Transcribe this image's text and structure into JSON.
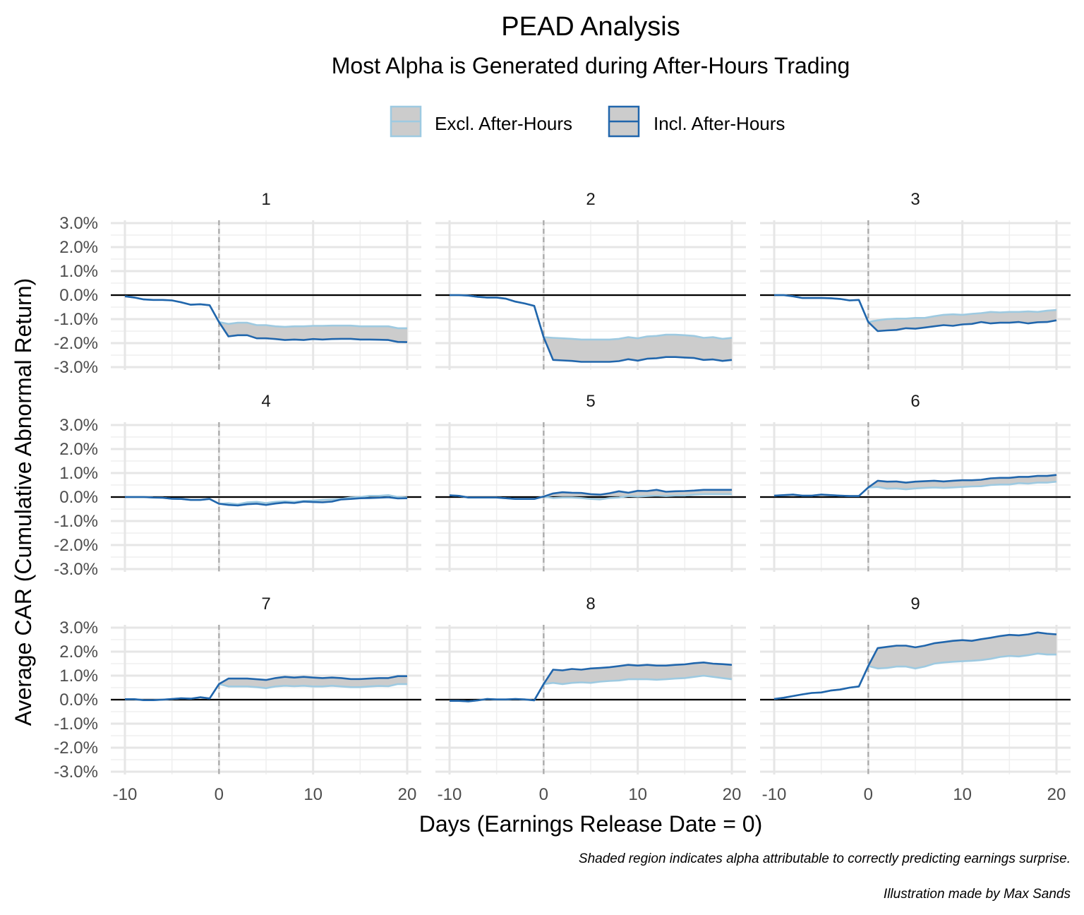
{
  "chart_data": {
    "type": "line",
    "title": "PEAD Analysis",
    "subtitle": "Most Alpha is Generated during After-Hours Trading",
    "xlabel": "Days (Earnings Release Date = 0)",
    "ylabel": "Average CAR (Cumulative Abnormal Return)",
    "caption": "Shaded region indicates alpha attributable to correctly predicting earnings surprise.",
    "caption2": "Illustration made by Max Sands",
    "legend_position": "top",
    "legend": [
      {
        "label": "Excl. After-Hours",
        "color": "#9ecae1"
      },
      {
        "label": "Incl. After-Hours",
        "color": "#2166ac"
      }
    ],
    "xlim": [
      -10,
      20
    ],
    "ylim": [
      -3.0,
      3.0
    ],
    "x_ticks": [
      -10,
      0,
      10,
      20
    ],
    "x_tick_labels": [
      "-10",
      "0",
      "10",
      "20"
    ],
    "y_ticks": [
      3,
      2,
      1,
      0,
      -1,
      -2,
      -3
    ],
    "y_tick_labels": [
      "3.0%",
      "2.0%",
      "1.0%",
      "0.0%",
      "-1.0%",
      "-2.0%",
      "-3.0%"
    ],
    "reference_lines": {
      "horizontal_y": 0,
      "vertical_dashed_x": 0
    },
    "grid": true,
    "panels": [
      {
        "label": "1",
        "x": [
          -10,
          -9,
          -8,
          -7,
          -6,
          -5,
          -4,
          -3,
          -2,
          -1,
          0,
          1,
          2,
          3,
          4,
          5,
          6,
          7,
          8,
          9,
          10,
          11,
          12,
          13,
          14,
          15,
          16,
          17,
          18,
          19,
          20
        ],
        "excl": [
          -0.05,
          -0.1,
          -0.18,
          -0.2,
          -0.2,
          -0.22,
          -0.3,
          -0.4,
          -0.38,
          -0.42,
          -1.12,
          -1.2,
          -1.15,
          -1.15,
          -1.25,
          -1.25,
          -1.3,
          -1.32,
          -1.3,
          -1.3,
          -1.28,
          -1.28,
          -1.27,
          -1.27,
          -1.27,
          -1.3,
          -1.3,
          -1.3,
          -1.3,
          -1.38,
          -1.38
        ],
        "incl": [
          -0.05,
          -0.1,
          -0.18,
          -0.2,
          -0.2,
          -0.22,
          -0.3,
          -0.4,
          -0.38,
          -0.42,
          -1.12,
          -1.72,
          -1.67,
          -1.67,
          -1.8,
          -1.8,
          -1.83,
          -1.87,
          -1.85,
          -1.87,
          -1.83,
          -1.85,
          -1.83,
          -1.82,
          -1.82,
          -1.85,
          -1.85,
          -1.86,
          -1.87,
          -1.95,
          -1.96
        ]
      },
      {
        "label": "2",
        "x": [
          -10,
          -9,
          -8,
          -7,
          -6,
          -5,
          -4,
          -3,
          -2,
          -1,
          0,
          1,
          2,
          3,
          4,
          5,
          6,
          7,
          8,
          9,
          10,
          11,
          12,
          13,
          14,
          15,
          16,
          17,
          18,
          19,
          20
        ],
        "excl": [
          0.0,
          0.0,
          -0.02,
          -0.07,
          -0.1,
          -0.1,
          -0.15,
          -0.27,
          -0.35,
          -0.45,
          -1.75,
          -1.78,
          -1.8,
          -1.82,
          -1.85,
          -1.85,
          -1.85,
          -1.85,
          -1.82,
          -1.75,
          -1.8,
          -1.72,
          -1.7,
          -1.65,
          -1.65,
          -1.67,
          -1.7,
          -1.78,
          -1.75,
          -1.82,
          -1.78
        ],
        "incl": [
          0.0,
          0.0,
          -0.02,
          -0.07,
          -0.1,
          -0.1,
          -0.15,
          -0.27,
          -0.35,
          -0.45,
          -1.75,
          -2.7,
          -2.72,
          -2.74,
          -2.78,
          -2.78,
          -2.78,
          -2.78,
          -2.75,
          -2.67,
          -2.73,
          -2.65,
          -2.63,
          -2.58,
          -2.58,
          -2.6,
          -2.62,
          -2.7,
          -2.68,
          -2.74,
          -2.7
        ]
      },
      {
        "label": "3",
        "x": [
          -10,
          -9,
          -8,
          -7,
          -6,
          -5,
          -4,
          -3,
          -2,
          -1,
          0,
          1,
          2,
          3,
          4,
          5,
          6,
          7,
          8,
          9,
          10,
          11,
          12,
          13,
          14,
          15,
          16,
          17,
          18,
          19,
          20
        ],
        "excl": [
          0.0,
          0.0,
          -0.05,
          -0.12,
          -0.12,
          -0.12,
          -0.13,
          -0.16,
          -0.22,
          -0.2,
          -1.12,
          -1.05,
          -1.0,
          -0.98,
          -0.98,
          -0.95,
          -0.95,
          -0.88,
          -0.82,
          -0.8,
          -0.82,
          -0.78,
          -0.75,
          -0.7,
          -0.72,
          -0.7,
          -0.7,
          -0.68,
          -0.7,
          -0.65,
          -0.62
        ],
        "incl": [
          0.0,
          0.0,
          -0.05,
          -0.12,
          -0.12,
          -0.12,
          -0.13,
          -0.16,
          -0.22,
          -0.2,
          -1.12,
          -1.5,
          -1.47,
          -1.45,
          -1.38,
          -1.4,
          -1.35,
          -1.3,
          -1.25,
          -1.28,
          -1.22,
          -1.2,
          -1.12,
          -1.18,
          -1.15,
          -1.15,
          -1.12,
          -1.18,
          -1.13,
          -1.12,
          -1.05
        ]
      },
      {
        "label": "4",
        "x": [
          -10,
          -9,
          -8,
          -7,
          -6,
          -5,
          -4,
          -3,
          -2,
          -1,
          0,
          1,
          2,
          3,
          4,
          5,
          6,
          7,
          8,
          9,
          10,
          11,
          12,
          13,
          14,
          15,
          16,
          17,
          18,
          19,
          20
        ],
        "excl": [
          0.0,
          0.0,
          0.0,
          -0.02,
          -0.03,
          -0.07,
          -0.08,
          -0.12,
          -0.12,
          -0.08,
          -0.28,
          -0.26,
          -0.3,
          -0.22,
          -0.2,
          -0.25,
          -0.2,
          -0.18,
          -0.2,
          -0.16,
          -0.15,
          -0.12,
          -0.1,
          -0.08,
          -0.02,
          0.0,
          0.05,
          0.05,
          0.08,
          0.0,
          -0.02
        ],
        "incl": [
          0.0,
          0.0,
          0.0,
          -0.02,
          -0.03,
          -0.07,
          -0.08,
          -0.12,
          -0.12,
          -0.08,
          -0.28,
          -0.33,
          -0.35,
          -0.3,
          -0.28,
          -0.33,
          -0.27,
          -0.23,
          -0.25,
          -0.19,
          -0.21,
          -0.22,
          -0.19,
          -0.1,
          -0.08,
          -0.05,
          -0.04,
          -0.03,
          -0.01,
          -0.06,
          -0.05
        ]
      },
      {
        "label": "5",
        "x": [
          -10,
          -9,
          -8,
          -7,
          -6,
          -5,
          -4,
          -3,
          -2,
          -1,
          0,
          1,
          2,
          3,
          4,
          5,
          6,
          7,
          8,
          9,
          10,
          11,
          12,
          13,
          14,
          15,
          16,
          17,
          18,
          19,
          20
        ],
        "excl": [
          0.07,
          0.05,
          -0.02,
          -0.02,
          -0.02,
          -0.02,
          -0.05,
          -0.08,
          -0.08,
          -0.08,
          0.02,
          -0.04,
          -0.02,
          -0.02,
          -0.04,
          -0.08,
          -0.1,
          -0.04,
          -0.02,
          0.04,
          0.02,
          0.04,
          0.06,
          0.04,
          0.06,
          0.06,
          0.1,
          0.12,
          0.12,
          0.12,
          0.12
        ],
        "incl": [
          0.07,
          0.05,
          -0.02,
          -0.02,
          -0.02,
          -0.02,
          -0.05,
          -0.08,
          -0.08,
          -0.08,
          0.02,
          0.15,
          0.2,
          0.18,
          0.17,
          0.12,
          0.1,
          0.16,
          0.24,
          0.18,
          0.26,
          0.25,
          0.3,
          0.22,
          0.24,
          0.25,
          0.27,
          0.3,
          0.3,
          0.3,
          0.3
        ]
      },
      {
        "label": "6",
        "x": [
          -10,
          -9,
          -8,
          -7,
          -6,
          -5,
          -4,
          -3,
          -2,
          -1,
          0,
          1,
          2,
          3,
          4,
          5,
          6,
          7,
          8,
          9,
          10,
          11,
          12,
          13,
          14,
          15,
          16,
          17,
          18,
          19,
          20
        ],
        "excl": [
          0.06,
          0.08,
          0.1,
          0.06,
          0.06,
          0.1,
          0.08,
          0.06,
          0.04,
          0.04,
          0.4,
          0.42,
          0.35,
          0.36,
          0.32,
          0.36,
          0.38,
          0.4,
          0.38,
          0.4,
          0.42,
          0.44,
          0.45,
          0.5,
          0.52,
          0.52,
          0.58,
          0.56,
          0.6,
          0.6,
          0.64
        ],
        "incl": [
          0.06,
          0.08,
          0.1,
          0.06,
          0.06,
          0.1,
          0.08,
          0.06,
          0.04,
          0.04,
          0.4,
          0.68,
          0.64,
          0.65,
          0.6,
          0.64,
          0.66,
          0.68,
          0.65,
          0.68,
          0.7,
          0.7,
          0.72,
          0.78,
          0.8,
          0.8,
          0.84,
          0.84,
          0.88,
          0.88,
          0.92
        ]
      },
      {
        "label": "7",
        "x": [
          -10,
          -9,
          -8,
          -7,
          -6,
          -5,
          -4,
          -3,
          -2,
          -1,
          0,
          1,
          2,
          3,
          4,
          5,
          6,
          7,
          8,
          9,
          10,
          11,
          12,
          13,
          14,
          15,
          16,
          17,
          18,
          19,
          20
        ],
        "excl": [
          0.02,
          0.02,
          -0.02,
          -0.02,
          0.0,
          0.03,
          0.06,
          0.04,
          0.1,
          0.05,
          0.65,
          0.55,
          0.55,
          0.55,
          0.52,
          0.48,
          0.55,
          0.58,
          0.56,
          0.58,
          0.55,
          0.55,
          0.58,
          0.55,
          0.52,
          0.52,
          0.55,
          0.57,
          0.56,
          0.65,
          0.65
        ],
        "incl": [
          0.02,
          0.02,
          -0.02,
          -0.02,
          0.0,
          0.03,
          0.06,
          0.04,
          0.1,
          0.05,
          0.65,
          0.88,
          0.88,
          0.88,
          0.85,
          0.82,
          0.9,
          0.95,
          0.92,
          0.95,
          0.92,
          0.9,
          0.92,
          0.9,
          0.86,
          0.86,
          0.88,
          0.9,
          0.9,
          0.98,
          0.98
        ]
      },
      {
        "label": "8",
        "x": [
          -10,
          -9,
          -8,
          -7,
          -6,
          -5,
          -4,
          -3,
          -2,
          -1,
          0,
          1,
          2,
          3,
          4,
          5,
          6,
          7,
          8,
          9,
          10,
          11,
          12,
          13,
          14,
          15,
          16,
          17,
          18,
          19,
          20
        ],
        "excl": [
          -0.05,
          -0.05,
          -0.07,
          -0.03,
          0.03,
          0.01,
          0.01,
          0.03,
          0.01,
          -0.03,
          0.65,
          0.7,
          0.65,
          0.7,
          0.72,
          0.7,
          0.75,
          0.78,
          0.8,
          0.85,
          0.85,
          0.85,
          0.83,
          0.85,
          0.88,
          0.9,
          0.95,
          1.0,
          0.95,
          0.9,
          0.85
        ],
        "incl": [
          -0.05,
          -0.05,
          -0.07,
          -0.03,
          0.03,
          0.01,
          0.01,
          0.03,
          0.01,
          -0.03,
          0.65,
          1.25,
          1.22,
          1.28,
          1.25,
          1.3,
          1.32,
          1.35,
          1.4,
          1.45,
          1.42,
          1.45,
          1.42,
          1.42,
          1.45,
          1.47,
          1.52,
          1.55,
          1.5,
          1.48,
          1.45
        ]
      },
      {
        "label": "9",
        "x": [
          -10,
          -9,
          -8,
          -7,
          -6,
          -5,
          -4,
          -3,
          -2,
          -1,
          0,
          1,
          2,
          3,
          4,
          5,
          6,
          7,
          8,
          9,
          10,
          11,
          12,
          13,
          14,
          15,
          16,
          17,
          18,
          19,
          20
        ],
        "excl": [
          0.03,
          0.08,
          0.15,
          0.22,
          0.28,
          0.3,
          0.38,
          0.42,
          0.5,
          0.55,
          1.4,
          1.3,
          1.32,
          1.38,
          1.38,
          1.3,
          1.38,
          1.5,
          1.55,
          1.58,
          1.6,
          1.62,
          1.65,
          1.7,
          1.78,
          1.82,
          1.8,
          1.85,
          1.92,
          1.88,
          1.88
        ],
        "incl": [
          0.03,
          0.08,
          0.15,
          0.22,
          0.28,
          0.3,
          0.38,
          0.42,
          0.5,
          0.55,
          1.4,
          2.15,
          2.2,
          2.25,
          2.25,
          2.18,
          2.25,
          2.35,
          2.4,
          2.45,
          2.48,
          2.45,
          2.52,
          2.58,
          2.65,
          2.7,
          2.68,
          2.72,
          2.8,
          2.75,
          2.72
        ]
      }
    ]
  }
}
